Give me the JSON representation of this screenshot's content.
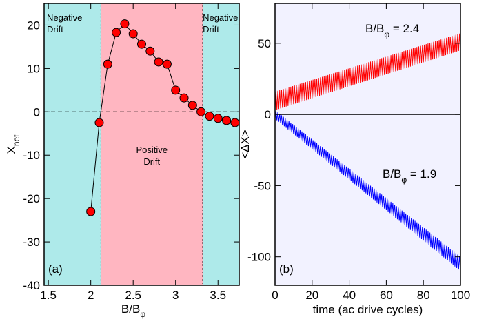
{
  "chart_data": [
    {
      "type": "scatter",
      "panel_label": "(a)",
      "xlabel": {
        "text": "B/B",
        "sub": "φ"
      },
      "ylabel": {
        "text": "X",
        "sub": "net"
      },
      "xlim": [
        1.45,
        3.75
      ],
      "ylim": [
        -40,
        25
      ],
      "xticks": [
        1.5,
        2,
        2.5,
        3,
        3.5
      ],
      "yticks": [
        -40,
        -30,
        -20,
        -10,
        0,
        10,
        20
      ],
      "regions": [
        {
          "from": 1.45,
          "to": 2.12,
          "color": "#aeeaea",
          "label": [
            "Negative",
            "Drift"
          ]
        },
        {
          "from": 2.12,
          "to": 3.32,
          "color": "#ffb6c1",
          "label": [
            "Positive",
            "Drift"
          ]
        },
        {
          "from": 3.32,
          "to": 3.75,
          "color": "#aeeaea",
          "label": [
            "Negative",
            "Drift"
          ]
        }
      ],
      "x": [
        2.0,
        2.1,
        2.2,
        2.3,
        2.4,
        2.5,
        2.6,
        2.7,
        2.8,
        2.9,
        3.0,
        3.1,
        3.2,
        3.3,
        3.4,
        3.5,
        3.6,
        3.7
      ],
      "values": [
        -23,
        -2.5,
        11,
        18.3,
        20.3,
        18,
        15.6,
        14,
        11.5,
        11,
        5,
        3.2,
        1.5,
        0,
        -1,
        -1.5,
        -2,
        -2.5
      ],
      "color": "#ff0000",
      "reference_line": 0
    },
    {
      "type": "band",
      "panel_label": "(b)",
      "xlabel": "time (ac drive cycles)",
      "ylabel": "<ΔX>",
      "xlim": [
        0,
        100
      ],
      "ylim": [
        -120,
        78
      ],
      "xticks": [
        0,
        20,
        40,
        60,
        80,
        100
      ],
      "yticks": [
        -100,
        -50,
        0,
        50
      ],
      "background": "#f2f2ff",
      "reference_line": 0,
      "series": [
        {
          "name": {
            "text": "B/B",
            "sub": "φ",
            "rest": " = 2.4"
          },
          "color": "#ff0000",
          "x": [
            0,
            100
          ],
          "low": [
            3,
            45
          ],
          "high": [
            16,
            57
          ]
        },
        {
          "name": {
            "text": "B/B",
            "sub": "φ",
            "rest": " = 1.9"
          },
          "color": "#0000ff",
          "x": [
            0,
            100
          ],
          "low": [
            -3,
            -110
          ],
          "high": [
            3,
            -100
          ]
        }
      ]
    }
  ]
}
